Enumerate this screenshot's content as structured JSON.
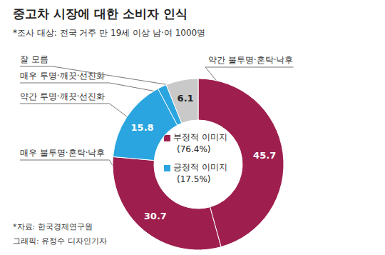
{
  "chart_data": {
    "type": "pie",
    "title": "중고차 시장에 대한 소비자 인식",
    "subtitle": "*조사 대상: 전국 거주 만 19세 이상 남·여 1000명",
    "categories": [
      "약간 불투명·혼탁·낙후",
      "매우 불투명·혼탁·낙후",
      "약간 투명·깨끗·선진화",
      "매우 투명·깨끗·선진화",
      "잘 모름"
    ],
    "values": [
      45.7,
      30.7,
      15.8,
      1.7,
      6.1
    ],
    "colors": [
      "#9e1f4e",
      "#9e1f4e",
      "#2aa5df",
      "#2aa5df",
      "#c9c9c9"
    ],
    "data_labels": true,
    "groups": [
      {
        "name": "부정적 이미지",
        "label": "(76.4%)",
        "color": "#9e1f4e"
      },
      {
        "name": "긍정적 이미지",
        "label": "(17.5%)",
        "color": "#2aa5df"
      }
    ],
    "source": "*자료: 한국경제연구원",
    "credit": "그래픽: 유정수 디자인기자"
  }
}
